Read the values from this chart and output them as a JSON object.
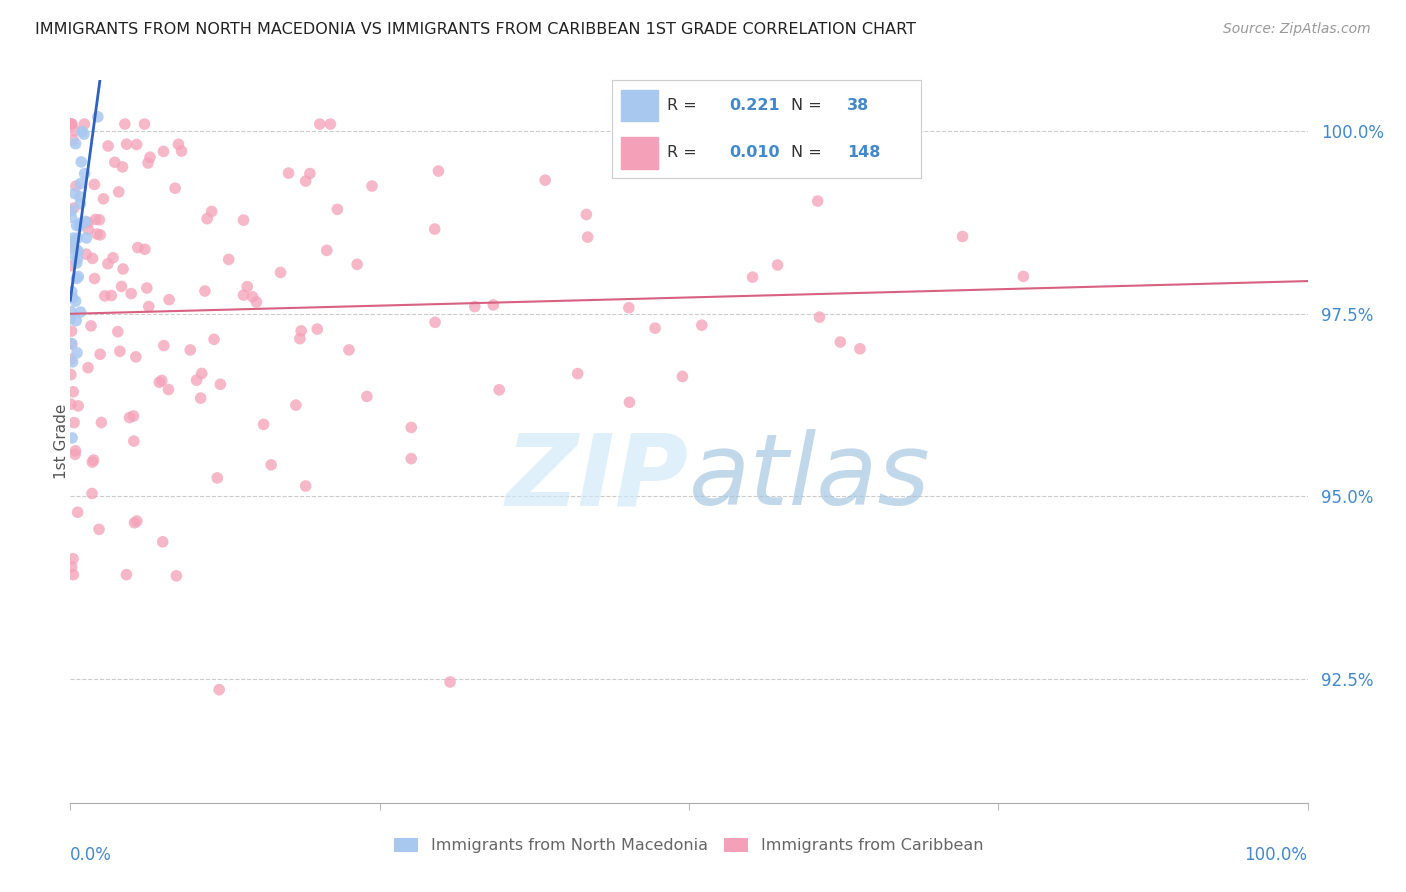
{
  "title": "IMMIGRANTS FROM NORTH MACEDONIA VS IMMIGRANTS FROM CARIBBEAN 1ST GRADE CORRELATION CHART",
  "source": "Source: ZipAtlas.com",
  "ylabel": "1st Grade",
  "y_tick_labels": [
    "92.5%",
    "95.0%",
    "97.5%",
    "100.0%"
  ],
  "y_tick_values": [
    0.925,
    0.95,
    0.975,
    1.0
  ],
  "x_range": [
    0.0,
    1.0
  ],
  "y_range": [
    0.908,
    1.007
  ],
  "legend_r_blue": "0.221",
  "legend_n_blue": "38",
  "legend_r_pink": "0.010",
  "legend_n_pink": "148",
  "label_blue": "Immigrants from North Macedonia",
  "label_pink": "Immigrants from Caribbean",
  "color_blue": "#a8c8f0",
  "color_pink": "#f4a0b8",
  "color_trend_blue": "#3060c0",
  "color_trend_pink": "#d86080",
  "color_axis_labels": "#4488cc",
  "color_grid": "#cccccc",
  "blue_seed": 12,
  "pink_seed": 7
}
